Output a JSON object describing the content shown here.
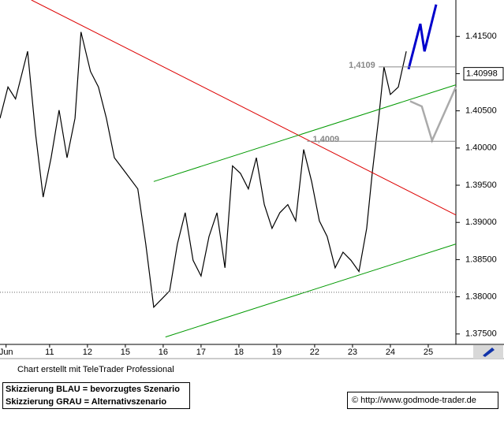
{
  "chart_data": {
    "type": "line",
    "xlim": [
      -0.31,
      11.73
    ],
    "ylim": [
      1.3736,
      1.4199
    ],
    "xticks": [
      {
        "value": -0.15,
        "label": "Jun"
      },
      {
        "value": 1,
        "label": "11"
      },
      {
        "value": 2,
        "label": "12"
      },
      {
        "value": 3,
        "label": "15"
      },
      {
        "value": 4,
        "label": "16"
      },
      {
        "value": 5,
        "label": "17"
      },
      {
        "value": 6,
        "label": "18"
      },
      {
        "value": 7,
        "label": "19"
      },
      {
        "value": 8,
        "label": "22"
      },
      {
        "value": 9,
        "label": "23"
      },
      {
        "value": 10,
        "label": "24"
      },
      {
        "value": 11,
        "label": "25"
      }
    ],
    "yticks": [
      {
        "value": 1.375,
        "label": "1.37500"
      },
      {
        "value": 1.38,
        "label": "1.38000"
      },
      {
        "value": 1.385,
        "label": "1.38500"
      },
      {
        "value": 1.39,
        "label": "1.39000"
      },
      {
        "value": 1.395,
        "label": "1.39500"
      },
      {
        "value": 1.4,
        "label": "1.40000"
      },
      {
        "value": 1.405,
        "label": "1.40500"
      },
      {
        "value": 1.41,
        "label": "1.41000"
      },
      {
        "value": 1.415,
        "label": "1.41500"
      }
    ],
    "series": [
      {
        "color": "#000000",
        "x": [
          -0.31,
          -0.1,
          0.1,
          0.42,
          0.63,
          0.83,
          1.04,
          1.25,
          1.46,
          1.67,
          1.83,
          2.08,
          2.29,
          2.5,
          2.71,
          3.02,
          3.33,
          3.54,
          3.75,
          3.96,
          4.17,
          4.375,
          4.58,
          4.79,
          5,
          5.21,
          5.42,
          5.63,
          5.83,
          6.04,
          6.25,
          6.46,
          6.67,
          6.875,
          7.08,
          7.29,
          7.5,
          7.71,
          7.92,
          8.125,
          8.33,
          8.54,
          8.75,
          8.96,
          9.17,
          9.375,
          9.52,
          9.69,
          9.83,
          10,
          10.21,
          10.42
        ],
        "values": [
          1.404,
          1.4082,
          1.4066,
          1.413,
          1.4019,
          1.3934,
          1.3987,
          1.4051,
          1.3987,
          1.404,
          1.4156,
          1.4103,
          1.4082,
          1.404,
          1.3987,
          1.3966,
          1.3945,
          1.3871,
          1.3786,
          1.3797,
          1.3808,
          1.3871,
          1.3913,
          1.3849,
          1.3828,
          1.3881,
          1.3913,
          1.3839,
          1.3976,
          1.3966,
          1.3945,
          1.3987,
          1.3924,
          1.3892,
          1.3913,
          1.3924,
          1.3902,
          1.3998,
          1.3955,
          1.3902,
          1.3881,
          1.3839,
          1.386,
          1.3849,
          1.3834,
          1.3892,
          1.3966,
          1.404,
          1.4109,
          1.4072,
          1.4082,
          1.413
        ],
        "width": 1.2
      },
      {
        "color": "#0000cc",
        "x": [
          10.48,
          10.79,
          10.9,
          11.21
        ],
        "values": [
          1.4106,
          1.4167,
          1.413,
          1.4193
        ],
        "width": 3
      },
      {
        "color": "#aaaaaa",
        "x": [
          10.52,
          10.83,
          11.1,
          11.73
        ],
        "values": [
          1.4063,
          1.4056,
          1.401,
          1.4082
        ],
        "width": 2.5
      },
      {
        "color": "#dd0000",
        "x": [
          0.52,
          11.73
        ],
        "values": [
          1.4199,
          1.391
        ],
        "width": 1
      },
      {
        "color": "#009900",
        "x": [
          3.75,
          11.73
        ],
        "values": [
          1.3955,
          1.4085
        ],
        "width": 1
      },
      {
        "color": "#009900",
        "x": [
          4.06,
          11.73
        ],
        "values": [
          1.3746,
          1.3871
        ],
        "width": 1
      },
      {
        "color": "#888888",
        "x": [
          9.69,
          11.73
        ],
        "values": [
          1.4109,
          1.4109
        ],
        "width": 1
      },
      {
        "color": "#888888",
        "x": [
          7.8,
          11.73
        ],
        "values": [
          1.4009,
          1.4009
        ],
        "width": 1
      },
      {
        "color": "#666666",
        "x": [
          -0.31,
          11.73
        ],
        "values": [
          1.3806,
          1.3806
        ],
        "width": 1,
        "dash": "1,2"
      }
    ],
    "annotations": [
      {
        "value": 1.4109,
        "label": "1,4109",
        "x": 8.9
      },
      {
        "value": 1.4009,
        "label": "1,4009",
        "x": 7.95
      }
    ],
    "last_price": {
      "value": 1.40998,
      "label": "1.40998"
    },
    "credit": "Chart erstellt mit TeleTrader Professional",
    "notes": [
      "Skizzierung BLAU = bevorzugtes Szenario",
      "Skizzierung GRAU = Alternativszenario"
    ],
    "source": "© http://www.godmode-trader.de"
  }
}
